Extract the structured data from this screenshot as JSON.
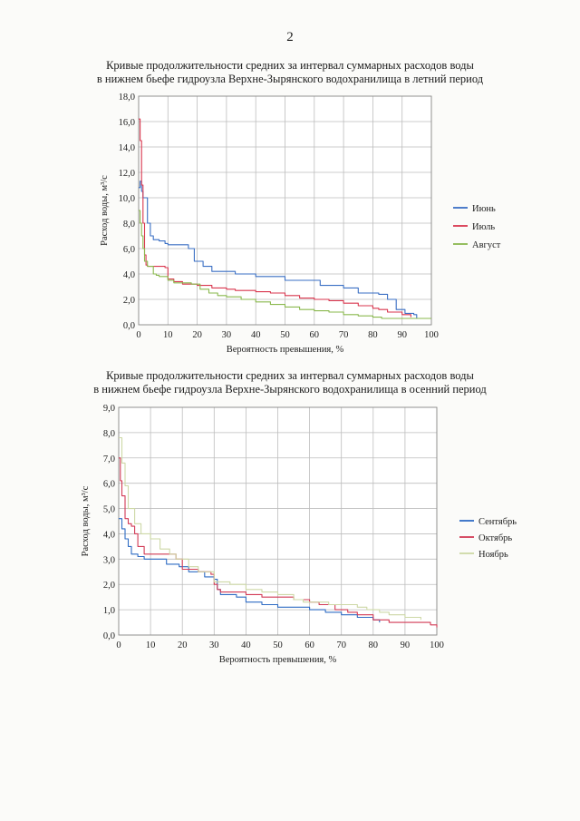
{
  "page": {
    "number": "2"
  },
  "chart_data": [
    {
      "type": "line",
      "title": "Кривые продолжительности средних за интервал суммарных расходов воды",
      "subtitle": "в нижнем бьефе гидроузла Верхне-Зырянского водохранилища в летний период",
      "xlabel": "Вероятность превышения, %",
      "ylabel": "Расход воды, м³/с",
      "xlim": [
        0,
        100
      ],
      "ylim": [
        0,
        18
      ],
      "x_ticks": [
        0,
        10,
        20,
        30,
        40,
        50,
        60,
        70,
        80,
        90,
        100
      ],
      "x_tick_labels": [
        "0",
        "10",
        "20",
        "30",
        "40",
        "50",
        "60",
        "70",
        "80",
        "90",
        "100"
      ],
      "y_ticks": [
        0,
        2,
        4,
        6,
        8,
        10,
        12,
        14,
        16,
        18
      ],
      "y_tick_labels": [
        "0,0",
        "2,0",
        "4,0",
        "6,0",
        "8,0",
        "10,0",
        "12,0",
        "14,0",
        "16,0",
        "18,0"
      ],
      "grid": true,
      "legend": "right",
      "series": [
        {
          "name": "Июнь",
          "color": "#3a6fc4",
          "x": [
            0,
            0.5,
            1,
            1.5,
            2,
            3,
            4,
            5,
            7,
            9,
            10,
            17,
            19,
            22,
            25,
            33,
            40,
            50,
            62,
            70,
            75,
            82,
            85,
            88,
            91,
            94,
            95
          ],
          "y": [
            10.8,
            11.3,
            10.5,
            10.0,
            10.0,
            8.0,
            7.0,
            6.7,
            6.6,
            6.4,
            6.3,
            6.0,
            5.0,
            4.6,
            4.2,
            4.0,
            3.8,
            3.5,
            3.1,
            2.9,
            2.5,
            2.4,
            2.0,
            1.2,
            0.9,
            0.8,
            0.5
          ]
        },
        {
          "name": "Июль",
          "color": "#d9364e",
          "x": [
            0,
            0.5,
            1,
            1.5,
            2,
            2.5,
            3,
            5,
            9,
            10,
            12,
            15,
            20,
            25,
            30,
            33,
            40,
            45,
            50,
            55,
            60,
            65,
            70,
            75,
            80,
            82,
            85,
            90,
            93
          ],
          "y": [
            16.2,
            14.5,
            11.0,
            8.0,
            5.5,
            4.7,
            4.6,
            4.6,
            4.5,
            3.6,
            3.4,
            3.2,
            3.1,
            2.9,
            2.8,
            2.7,
            2.6,
            2.5,
            2.3,
            2.1,
            2.0,
            1.9,
            1.7,
            1.5,
            1.3,
            1.2,
            1.0,
            0.8,
            0.6
          ]
        },
        {
          "name": "Август",
          "color": "#8ab84e",
          "x": [
            0,
            0.5,
            1,
            1.5,
            2,
            3,
            5,
            6,
            7,
            10,
            12,
            18,
            21,
            24,
            27,
            30,
            35,
            40,
            45,
            50,
            55,
            60,
            65,
            70,
            75,
            80,
            83,
            90,
            100
          ],
          "y": [
            9.0,
            8.0,
            7.0,
            6.0,
            5.0,
            4.6,
            4.0,
            3.9,
            3.8,
            3.5,
            3.3,
            3.2,
            2.8,
            2.5,
            2.3,
            2.2,
            2.0,
            1.8,
            1.6,
            1.4,
            1.2,
            1.1,
            1.0,
            0.8,
            0.7,
            0.6,
            0.5,
            0.5,
            0.5
          ]
        }
      ]
    },
    {
      "type": "line",
      "title": "Кривые продолжительности средних за интервал суммарных расходов воды",
      "subtitle": "в нижнем бьефе гидроузла Верхне-Зырянского водохранилища в осенний период",
      "xlabel": "Вероятность превышения, %",
      "ylabel": "Расход воды, м³/с",
      "xlim": [
        0,
        100
      ],
      "ylim": [
        0,
        9
      ],
      "x_ticks": [
        0,
        10,
        20,
        30,
        40,
        50,
        60,
        70,
        80,
        90,
        100
      ],
      "x_tick_labels": [
        "0",
        "10",
        "20",
        "30",
        "40",
        "50",
        "60",
        "70",
        "80",
        "90",
        "100"
      ],
      "y_ticks": [
        0,
        1,
        2,
        3,
        4,
        5,
        6,
        7,
        8,
        9
      ],
      "y_tick_labels": [
        "0,0",
        "1,0",
        "2,0",
        "3,0",
        "4,0",
        "5,0",
        "6,0",
        "7,0",
        "8,0",
        "9,0"
      ],
      "grid": true,
      "legend": "right",
      "series": [
        {
          "name": "Сентябрь",
          "color": "#2f6cc4",
          "x": [
            0,
            1,
            2,
            3,
            4,
            6,
            8,
            12,
            15,
            19,
            22,
            27,
            30,
            31,
            32,
            37,
            40,
            45,
            50,
            60,
            65,
            70,
            75,
            80,
            82
          ],
          "y": [
            4.6,
            4.2,
            3.8,
            3.5,
            3.2,
            3.1,
            3.0,
            3.0,
            2.8,
            2.7,
            2.5,
            2.3,
            2.2,
            1.8,
            1.6,
            1.5,
            1.3,
            1.2,
            1.1,
            1.0,
            0.9,
            0.8,
            0.7,
            0.6,
            0.5
          ]
        },
        {
          "name": "Октябрь",
          "color": "#d23a55",
          "x": [
            0,
            0.5,
            1,
            2,
            3,
            4,
            5,
            6,
            8,
            15,
            18,
            20,
            25,
            29,
            30,
            31,
            32,
            35,
            40,
            45,
            52,
            55,
            60,
            63,
            68,
            72,
            75,
            80,
            85,
            98,
            100
          ],
          "y": [
            7.0,
            6.1,
            5.5,
            4.6,
            4.4,
            4.3,
            4.0,
            3.5,
            3.2,
            3.2,
            3.0,
            2.6,
            2.5,
            2.4,
            2.0,
            1.8,
            1.7,
            1.7,
            1.6,
            1.5,
            1.5,
            1.4,
            1.3,
            1.2,
            1.0,
            0.9,
            0.8,
            0.6,
            0.5,
            0.4,
            0.3
          ]
        },
        {
          "name": "Ноябрь",
          "color": "#cdd8a6",
          "x": [
            0,
            1,
            2,
            3,
            5,
            7,
            10,
            13,
            16,
            18,
            22,
            25,
            30,
            35,
            40,
            45,
            50,
            55,
            58,
            62,
            66,
            70,
            75,
            78,
            82,
            85,
            90,
            95
          ],
          "y": [
            7.8,
            6.8,
            5.9,
            5.0,
            4.4,
            4.0,
            3.8,
            3.4,
            3.2,
            3.0,
            2.7,
            2.5,
            2.1,
            2.0,
            1.8,
            1.7,
            1.6,
            1.4,
            1.3,
            1.3,
            1.2,
            1.2,
            1.1,
            1.0,
            0.9,
            0.8,
            0.7,
            0.6
          ]
        }
      ]
    }
  ]
}
